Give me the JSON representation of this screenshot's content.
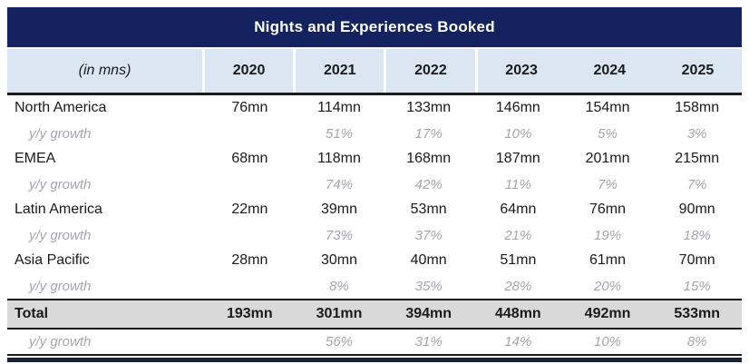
{
  "table": {
    "title": "Nights and Experiences Booked",
    "unit_label": "(in mns)",
    "years": [
      "2020",
      "2021",
      "2022",
      "2023",
      "2024",
      "2025"
    ],
    "growth_label": "y/y growth",
    "rows": [
      {
        "name": "North America",
        "values": [
          "76mn",
          "114mn",
          "133mn",
          "146mn",
          "154mn",
          "158mn"
        ],
        "growth": [
          "",
          "51%",
          "17%",
          "10%",
          "5%",
          "3%"
        ]
      },
      {
        "name": "EMEA",
        "values": [
          "68mn",
          "118mn",
          "168mn",
          "187mn",
          "201mn",
          "215mn"
        ],
        "growth": [
          "",
          "74%",
          "42%",
          "11%",
          "7%",
          "7%"
        ]
      },
      {
        "name": "Latin America",
        "values": [
          "22mn",
          "39mn",
          "53mn",
          "64mn",
          "76mn",
          "90mn"
        ],
        "growth": [
          "",
          "73%",
          "37%",
          "21%",
          "19%",
          "18%"
        ]
      },
      {
        "name": "Asia Pacific",
        "values": [
          "28mn",
          "30mn",
          "40mn",
          "51mn",
          "61mn",
          "70mn"
        ],
        "growth": [
          "",
          "8%",
          "35%",
          "28%",
          "20%",
          "15%"
        ]
      }
    ],
    "total_row": {
      "name": "Total",
      "values": [
        "193mn",
        "301mn",
        "394mn",
        "448mn",
        "492mn",
        "533mn"
      ],
      "growth": [
        "",
        "56%",
        "31%",
        "14%",
        "10%",
        "8%"
      ]
    }
  },
  "colors": {
    "header_navy": "#14235F",
    "subheader_blue": "#DAE6F2",
    "total_row_gray": "#D9D9D9",
    "growth_text_gray": "#A3A6AD",
    "rule_black": "#1A1A1A",
    "bottom_bar_navy": "#1B2138",
    "title_text": "#FFFFFF",
    "body_text": "#1A1A1A"
  },
  "chart_data": {
    "type": "table",
    "title": "Nights and Experiences Booked",
    "unit": "millions of nights and experiences booked",
    "unit_label": "(in mns)",
    "categories": [
      "2020",
      "2021",
      "2022",
      "2023",
      "2024",
      "2025"
    ],
    "series": [
      {
        "name": "North America",
        "values": [
          76,
          114,
          133,
          146,
          154,
          158
        ],
        "yoy_growth_pct": [
          null,
          51,
          17,
          10,
          5,
          3
        ]
      },
      {
        "name": "EMEA",
        "values": [
          68,
          118,
          168,
          187,
          201,
          215
        ],
        "yoy_growth_pct": [
          null,
          74,
          42,
          11,
          7,
          7
        ]
      },
      {
        "name": "Latin America",
        "values": [
          22,
          39,
          53,
          64,
          76,
          90
        ],
        "yoy_growth_pct": [
          null,
          73,
          37,
          21,
          19,
          18
        ]
      },
      {
        "name": "Asia Pacific",
        "values": [
          28,
          30,
          40,
          51,
          61,
          70
        ],
        "yoy_growth_pct": [
          null,
          8,
          35,
          28,
          20,
          15
        ]
      }
    ],
    "total": {
      "name": "Total",
      "values": [
        193,
        301,
        394,
        448,
        492,
        533
      ],
      "yoy_growth_pct": [
        null,
        56,
        31,
        14,
        10,
        8
      ]
    }
  }
}
